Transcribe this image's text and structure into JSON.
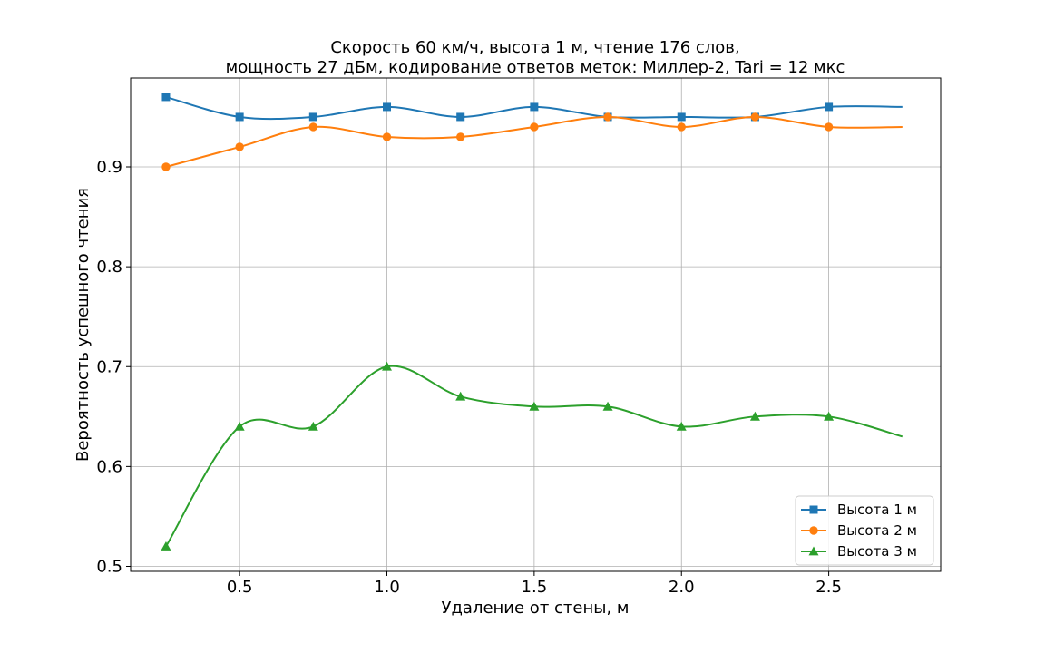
{
  "chart_data": {
    "type": "line",
    "title": "Скорость 60 км/ч, высота 1 м, чтение 176 слов,",
    "subtitle": "мощность 27 дБм, кодирование ответов меток: Миллер-2, Tari = 12 мкс",
    "xlabel": "Удаление от стены, м",
    "ylabel": "Вероятность успешного чтения",
    "xlim": [
      0.13,
      2.88
    ],
    "ylim": [
      0.495,
      0.989
    ],
    "xticks": [
      "0.5",
      "1.0",
      "1.5",
      "2.0",
      "2.5"
    ],
    "yticks": [
      "0.5",
      "0.6",
      "0.7",
      "0.8",
      "0.9"
    ],
    "grid": true,
    "legend_position": "bottom-right",
    "x": [
      0.25,
      0.5,
      0.75,
      1.0,
      1.25,
      1.5,
      1.75,
      2.0,
      2.25,
      2.5,
      2.75
    ],
    "series": [
      {
        "name": "Высота 1 м",
        "color": "#1f77b4",
        "marker": "square",
        "values": [
          0.97,
          0.95,
          0.95,
          0.96,
          0.95,
          0.96,
          0.95,
          0.95,
          0.95,
          0.96,
          0.96
        ]
      },
      {
        "name": "Высота 2 м",
        "color": "#ff7f0e",
        "marker": "circle",
        "values": [
          0.9,
          0.92,
          0.94,
          0.93,
          0.93,
          0.94,
          0.95,
          0.94,
          0.95,
          0.94,
          0.94
        ]
      },
      {
        "name": "Высота 3 м",
        "color": "#2ca02c",
        "marker": "triangle",
        "values": [
          0.52,
          0.64,
          0.64,
          0.7,
          0.67,
          0.66,
          0.66,
          0.64,
          0.65,
          0.65,
          0.63
        ]
      }
    ]
  }
}
